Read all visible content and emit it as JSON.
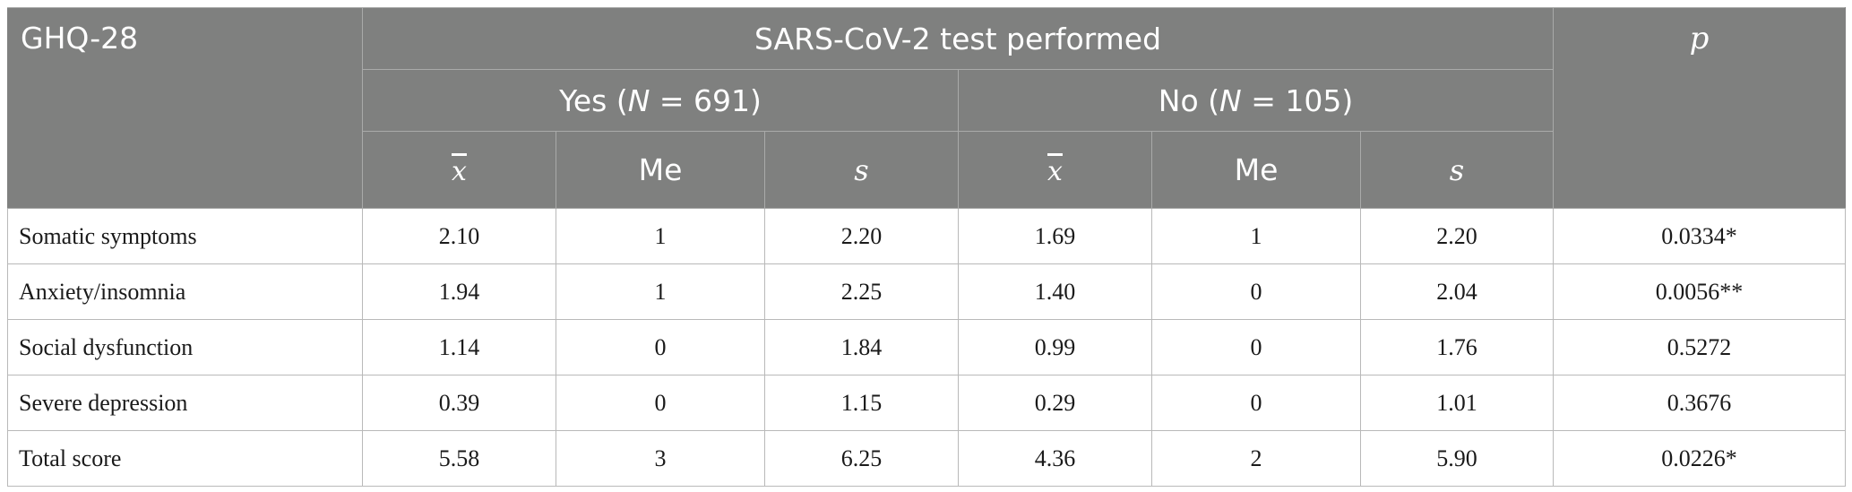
{
  "header": {
    "corner": "GHQ-28",
    "group": "SARS-CoV-2 test performed",
    "p": "p",
    "yes": {
      "prefix": "Yes (",
      "n_symbol": "N",
      "rest": " = 691)"
    },
    "no": {
      "prefix": "No (",
      "n_symbol": "N",
      "rest": " = 105)"
    },
    "stats": {
      "mean": "x",
      "median": "Me",
      "sd": "s"
    }
  },
  "rows": [
    {
      "label": "Somatic symptoms",
      "yes_mean": "2.10",
      "yes_me": "1",
      "yes_s": "2.20",
      "no_mean": "1.69",
      "no_me": "1",
      "no_s": "2.20",
      "p": "0.0334*"
    },
    {
      "label": "Anxiety/insomnia",
      "yes_mean": "1.94",
      "yes_me": "1",
      "yes_s": "2.25",
      "no_mean": "1.40",
      "no_me": "0",
      "no_s": "2.04",
      "p": "0.0056**"
    },
    {
      "label": "Social dysfunction",
      "yes_mean": "1.14",
      "yes_me": "0",
      "yes_s": "1.84",
      "no_mean": "0.99",
      "no_me": "0",
      "no_s": "1.76",
      "p": "0.5272"
    },
    {
      "label": "Severe depression",
      "yes_mean": "0.39",
      "yes_me": "0",
      "yes_s": "1.15",
      "no_mean": "0.29",
      "no_me": "0",
      "no_s": "1.01",
      "p": "0.3676"
    },
    {
      "label": "Total score",
      "yes_mean": "5.58",
      "yes_me": "3",
      "yes_s": "6.25",
      "no_mean": "4.36",
      "no_me": "2",
      "no_s": "5.90",
      "p": "0.0226*"
    }
  ]
}
